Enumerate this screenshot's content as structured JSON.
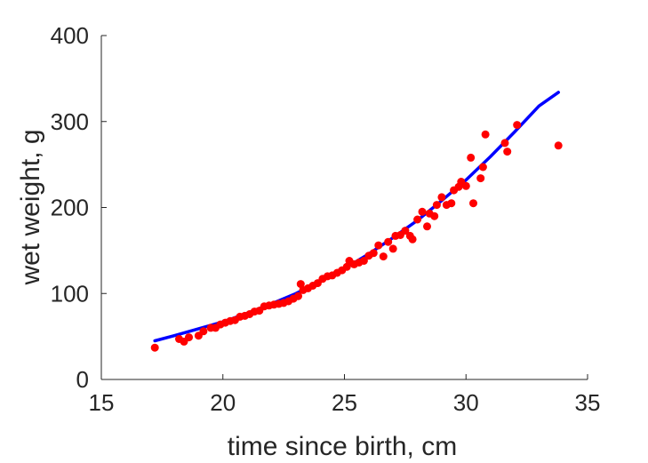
{
  "chart_data": {
    "type": "scatter",
    "title": "",
    "xlabel": "time since birth, cm",
    "ylabel": "wet weight, g",
    "xlim": [
      15,
      35
    ],
    "ylim": [
      0,
      400
    ],
    "xticks": [
      15,
      20,
      25,
      30,
      35
    ],
    "yticks": [
      0,
      100,
      200,
      300,
      400
    ],
    "grid": false,
    "box": "left-bottom",
    "colors": {
      "points": "#ff0000",
      "curve": "#0000ff",
      "axis": "#262626"
    },
    "series": [
      {
        "kind": "points",
        "x": [
          17.2,
          18.2,
          18.4,
          18.6,
          19.0,
          19.2,
          19.5,
          19.7,
          19.9,
          20.1,
          20.3,
          20.5,
          20.7,
          20.9,
          21.1,
          21.3,
          21.5,
          21.7,
          21.9,
          22.1,
          22.3,
          22.5,
          22.7,
          22.9,
          23.1,
          23.2,
          23.3,
          23.5,
          23.7,
          23.9,
          24.1,
          24.3,
          24.5,
          24.7,
          24.9,
          25.1,
          25.2,
          25.4,
          25.6,
          25.8,
          26.0,
          26.2,
          26.4,
          26.6,
          26.8,
          27.0,
          27.1,
          27.3,
          27.5,
          27.7,
          27.8,
          28.0,
          28.2,
          28.4,
          28.5,
          28.7,
          28.8,
          29.0,
          29.2,
          29.4,
          29.5,
          29.7,
          29.8,
          30.0,
          30.2,
          30.3,
          30.6,
          30.7,
          30.8,
          31.6,
          31.7,
          32.1,
          33.8
        ],
        "y": [
          37,
          47,
          44,
          49,
          51,
          56,
          60,
          60,
          64,
          66,
          68,
          69,
          73,
          74,
          76,
          79,
          80,
          85,
          86,
          87,
          88,
          89,
          91,
          94,
          97,
          111,
          104,
          106,
          109,
          112,
          117,
          120,
          121,
          124,
          127,
          131,
          138,
          134,
          136,
          138,
          144,
          147,
          156,
          143,
          160,
          152,
          167,
          168,
          173,
          167,
          163,
          186,
          195,
          178,
          193,
          190,
          203,
          212,
          203,
          205,
          220,
          224,
          230,
          225,
          258,
          205,
          234,
          247,
          285,
          275,
          265,
          296,
          272
        ]
      },
      {
        "kind": "curve",
        "x": [
          17.2,
          18.0,
          19.0,
          20.0,
          21.0,
          22.0,
          23.0,
          24.0,
          25.0,
          26.0,
          27.0,
          28.0,
          29.0,
          30.0,
          31.0,
          32.0,
          33.0,
          33.8
        ],
        "y": [
          45,
          51,
          59,
          67,
          77,
          88,
          100,
          114,
          129,
          146,
          165,
          185,
          208,
          232,
          259,
          288,
          318,
          334
        ]
      }
    ]
  }
}
